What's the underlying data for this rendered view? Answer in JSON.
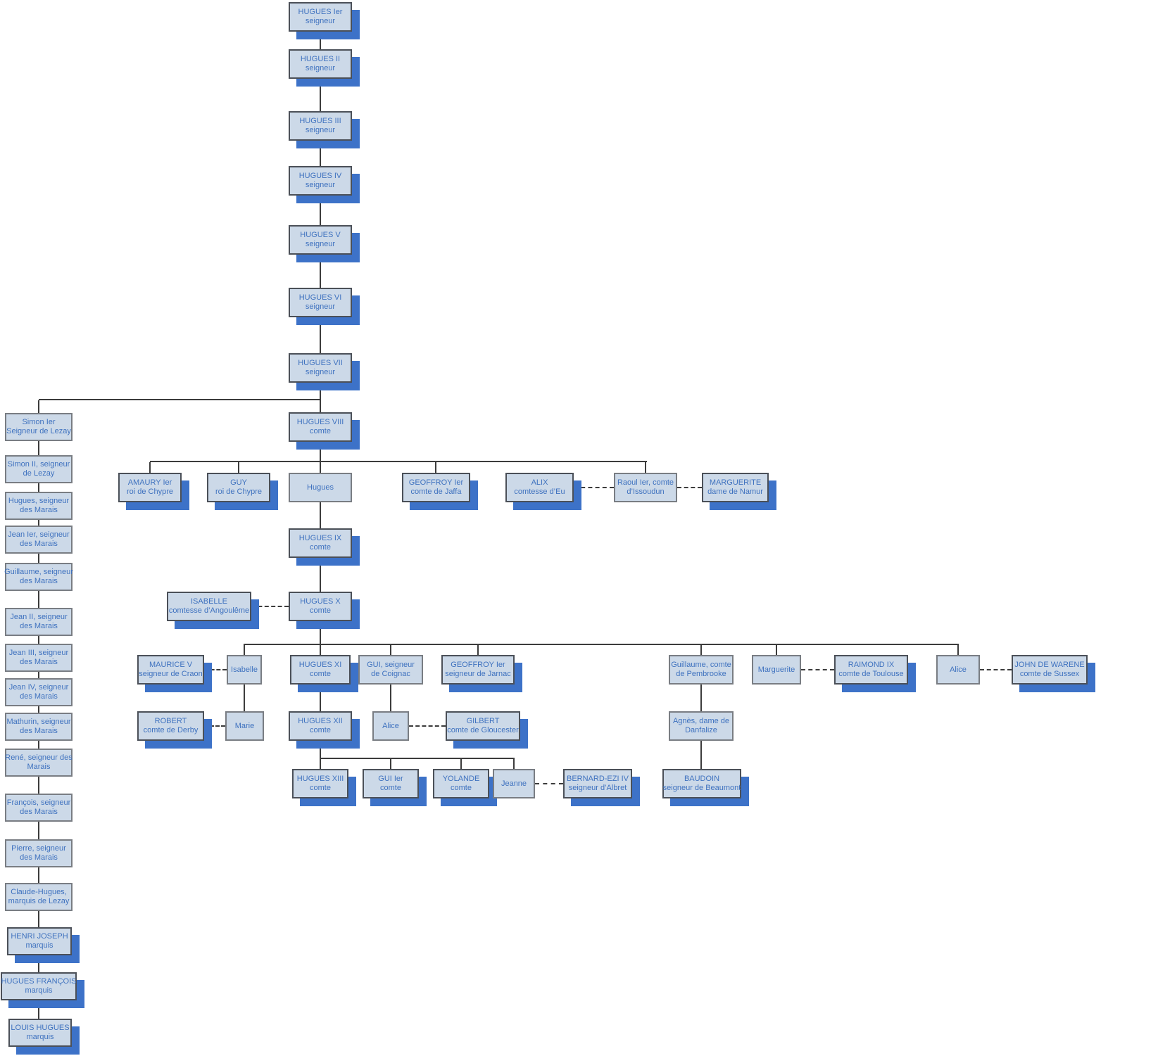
{
  "diagram_type": "genealogy-org-chart",
  "colors": {
    "node_fill": "#ccd9e8",
    "node_border": "#4b5058",
    "node_border_light": "#797d83",
    "shadow": "#3d72c8",
    "text": "#3f72bf",
    "line": "#3c3c3c",
    "background": "#ffffff"
  },
  "nodes": [
    {
      "id": "hugues-1",
      "lines": [
        "HUGUES Ier",
        "seigneur"
      ]
    },
    {
      "id": "hugues-2",
      "lines": [
        "HUGUES II",
        "seigneur"
      ]
    },
    {
      "id": "hugues-3",
      "lines": [
        "HUGUES III",
        "seigneur"
      ]
    },
    {
      "id": "hugues-4",
      "lines": [
        "HUGUES IV",
        "seigneur"
      ]
    },
    {
      "id": "hugues-5",
      "lines": [
        "HUGUES V",
        "seigneur"
      ]
    },
    {
      "id": "hugues-6",
      "lines": [
        "HUGUES VI",
        "seigneur"
      ]
    },
    {
      "id": "hugues-7",
      "lines": [
        "HUGUES VII",
        "seigneur"
      ]
    },
    {
      "id": "hugues-8",
      "lines": [
        "HUGUES VIII",
        "comte"
      ]
    },
    {
      "id": "simon-1",
      "lines": [
        "Simon Ier",
        "Seigneur de Lezay"
      ]
    },
    {
      "id": "simon-2",
      "lines": [
        "Simon II, seigneur",
        "de Lezay"
      ]
    },
    {
      "id": "hugues-marais",
      "lines": [
        "Hugues, seigneur",
        "des Marais"
      ]
    },
    {
      "id": "jean-1",
      "lines": [
        "Jean Ier, seigneur",
        "des Marais"
      ]
    },
    {
      "id": "guillaume-marais",
      "lines": [
        "Guillaume, seigneur",
        "des Marais"
      ]
    },
    {
      "id": "jean-2",
      "lines": [
        "Jean II, seigneur",
        "des Marais"
      ]
    },
    {
      "id": "jean-3",
      "lines": [
        "Jean III, seigneur",
        "des Marais"
      ]
    },
    {
      "id": "jean-4",
      "lines": [
        "Jean IV, seigneur",
        "des Marais"
      ]
    },
    {
      "id": "mathurin",
      "lines": [
        "Mathurin, seigneur",
        "des Marais"
      ]
    },
    {
      "id": "rene",
      "lines": [
        "René, seigneur des",
        "Marais"
      ]
    },
    {
      "id": "francois",
      "lines": [
        "François, seigneur",
        "des Marais"
      ]
    },
    {
      "id": "pierre",
      "lines": [
        "Pierre, seigneur",
        "des Marais"
      ]
    },
    {
      "id": "claude-hugues",
      "lines": [
        "Claude-Hugues,",
        "marquis de Lezay"
      ]
    },
    {
      "id": "henri-joseph",
      "lines": [
        "HENRI JOSEPH",
        "marquis"
      ]
    },
    {
      "id": "hugues-francois",
      "lines": [
        "HUGUES FRANÇOIS",
        "marquis"
      ]
    },
    {
      "id": "louis-hugues",
      "lines": [
        "LOUIS HUGUES",
        "marquis"
      ]
    },
    {
      "id": "amaury",
      "lines": [
        "AMAURY Ier",
        "roi de Chypre"
      ]
    },
    {
      "id": "guy",
      "lines": [
        "GUY",
        "roi de Chypre"
      ]
    },
    {
      "id": "hugues-fils",
      "lines": [
        "Hugues"
      ]
    },
    {
      "id": "geoffroy-jaffa",
      "lines": [
        "GEOFFROY Ier",
        "comte de Jaffa"
      ]
    },
    {
      "id": "alix",
      "lines": [
        "ALIX",
        "comtesse d’Eu"
      ]
    },
    {
      "id": "raoul",
      "lines": [
        "Raoul Ier, comte",
        "d’Issoudun"
      ]
    },
    {
      "id": "marguerite-namur",
      "lines": [
        "MARGUERITE",
        "dame de Namur"
      ]
    },
    {
      "id": "hugues-9",
      "lines": [
        "HUGUES IX",
        "comte"
      ]
    },
    {
      "id": "isabelle-angouleme",
      "lines": [
        "ISABELLE",
        "comtesse d’Angoulême"
      ]
    },
    {
      "id": "hugues-10",
      "lines": [
        "HUGUES X",
        "comte"
      ]
    },
    {
      "id": "maurice",
      "lines": [
        "MAURICE V",
        "seigneur de Craon"
      ]
    },
    {
      "id": "isabelle",
      "lines": [
        "Isabelle"
      ]
    },
    {
      "id": "hugues-11",
      "lines": [
        "HUGUES XI",
        "comte"
      ]
    },
    {
      "id": "gui-coignac",
      "lines": [
        "GUI, seigneur",
        "de Coignac"
      ]
    },
    {
      "id": "geoffroy-jarnac",
      "lines": [
        "GEOFFROY Ier",
        "seigneur de Jarnac"
      ]
    },
    {
      "id": "guillaume-pembrooke",
      "lines": [
        "Guillaume, comte",
        "de Pembrooke"
      ]
    },
    {
      "id": "marguerite",
      "lines": [
        "Marguerite"
      ]
    },
    {
      "id": "raimond",
      "lines": [
        "RAIMOND IX",
        "comte de Toulouse"
      ]
    },
    {
      "id": "alice",
      "lines": [
        "Alice"
      ]
    },
    {
      "id": "john-warene",
      "lines": [
        "JOHN DE WARENE",
        "comte de Sussex"
      ]
    },
    {
      "id": "robert-derby",
      "lines": [
        "ROBERT",
        "comte de Derby"
      ]
    },
    {
      "id": "marie",
      "lines": [
        "Marie"
      ]
    },
    {
      "id": "hugues-12",
      "lines": [
        "HUGUES XII",
        "comte"
      ]
    },
    {
      "id": "alice-coignac",
      "lines": [
        "Alice"
      ]
    },
    {
      "id": "gilbert",
      "lines": [
        "GILBERT",
        "comte de Gloucester"
      ]
    },
    {
      "id": "agnes",
      "lines": [
        "Agnès, dame de",
        "Danfalize"
      ]
    },
    {
      "id": "hugues-13",
      "lines": [
        "HUGUES XIII",
        "comte"
      ]
    },
    {
      "id": "gui-1",
      "lines": [
        "GUI Ier",
        "comte"
      ]
    },
    {
      "id": "yolande",
      "lines": [
        "YOLANDE",
        "comte"
      ]
    },
    {
      "id": "jeanne",
      "lines": [
        "Jeanne"
      ]
    },
    {
      "id": "bernard-ezi",
      "lines": [
        "BERNARD-EZI IV",
        "seigneur d’Albret"
      ]
    },
    {
      "id": "baudoin",
      "lines": [
        "BAUDOIN",
        "seigneur de Beaumont"
      ]
    }
  ]
}
